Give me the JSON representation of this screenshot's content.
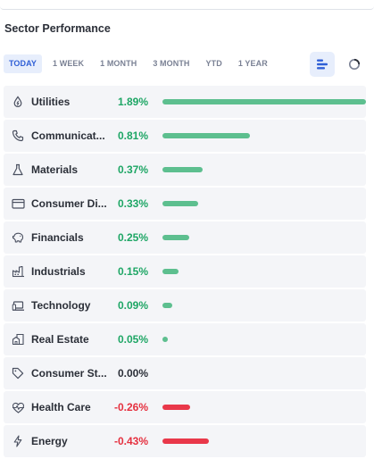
{
  "title": "Sector Performance",
  "ranges": [
    {
      "label": "TODAY",
      "active": true
    },
    {
      "label": "1 WEEK",
      "active": false
    },
    {
      "label": "1 MONTH",
      "active": false
    },
    {
      "label": "3 MONTH",
      "active": false
    },
    {
      "label": "YTD",
      "active": false
    },
    {
      "label": "1 YEAR",
      "active": false
    }
  ],
  "view_toggle": {
    "active": "bar-view",
    "icons": [
      "bar-chart-icon",
      "donut-chart-icon"
    ]
  },
  "colors": {
    "positive": "#1ea665",
    "negative": "#e5303f",
    "accent": "#2f5fd6"
  },
  "sectors": [
    {
      "name": "Utilities",
      "change": "1.89%",
      "value": 1.89,
      "icon": "drop-icon"
    },
    {
      "name": "Communicat...",
      "change": "0.81%",
      "value": 0.81,
      "icon": "phone-icon"
    },
    {
      "name": "Materials",
      "change": "0.37%",
      "value": 0.37,
      "icon": "flask-icon"
    },
    {
      "name": "Consumer Di...",
      "change": "0.33%",
      "value": 0.33,
      "icon": "credit-card-icon"
    },
    {
      "name": "Financials",
      "change": "0.25%",
      "value": 0.25,
      "icon": "piggy-bank-icon"
    },
    {
      "name": "Industrials",
      "change": "0.15%",
      "value": 0.15,
      "icon": "factory-icon"
    },
    {
      "name": "Technology",
      "change": "0.09%",
      "value": 0.09,
      "icon": "laptop-icon"
    },
    {
      "name": "Real Estate",
      "change": "0.05%",
      "value": 0.05,
      "icon": "buildings-icon"
    },
    {
      "name": "Consumer St...",
      "change": "0.00%",
      "value": 0.0,
      "icon": "tag-icon"
    },
    {
      "name": "Health Care",
      "change": "-0.26%",
      "value": -0.26,
      "icon": "heartbeat-icon"
    },
    {
      "name": "Energy",
      "change": "-0.43%",
      "value": -0.43,
      "icon": "lightning-icon"
    }
  ]
}
